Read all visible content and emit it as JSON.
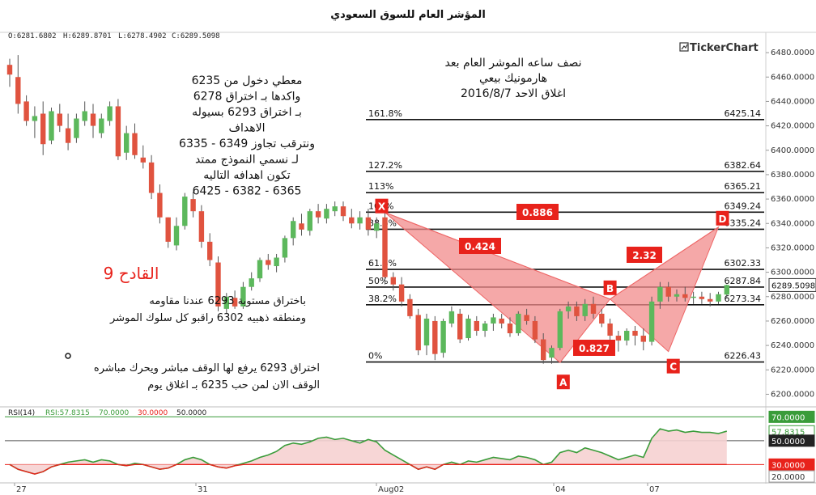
{
  "chart_data": {
    "type": "candlestick",
    "title": "المؤشر العام للسوق السعودي",
    "brand": "TickerChart",
    "ohlc_label": {
      "open": "O:6281.6802",
      "high": "H:6289.8701",
      "low": "L:6278.4902",
      "close": "C:6289.5098"
    },
    "last_price": "6289.5098",
    "x_labels": [
      "27",
      "31",
      "Aug02",
      "04",
      "07"
    ],
    "y_ticks": [
      "6200.0000",
      "6220.0000",
      "6240.0000",
      "6260.0000",
      "6280.0000",
      "6300.0000",
      "6320.0000",
      "6340.0000",
      "6360.0000",
      "6380.0000",
      "6400.0000",
      "6420.0000",
      "6440.0000",
      "6460.0000",
      "6480.0000"
    ],
    "y_range": [
      6193,
      6490
    ],
    "fib_levels": [
      {
        "pct": "161.8%",
        "price": 6425.14,
        "label": "6425.14"
      },
      {
        "pct": "127.2%",
        "price": 6382.64,
        "label": "6382.64"
      },
      {
        "pct": "113%",
        "price": 6365.21,
        "label": "6365.21"
      },
      {
        "pct": "100%",
        "price": 6349.24,
        "label": "6349.24"
      },
      {
        "pct": "88.6%",
        "price": 6335.24,
        "label": "6335.24"
      },
      {
        "pct": "61.8%",
        "price": 6302.33,
        "label": "6302.33"
      },
      {
        "pct": "50%",
        "price": 6287.84,
        "label": "6287.84"
      },
      {
        "pct": "38.2%",
        "price": 6273.34,
        "label": "6273.34"
      },
      {
        "pct": "0%",
        "price": 6226.43,
        "label": "6226.43"
      }
    ],
    "pattern_points": [
      {
        "name": "X",
        "idx": 45,
        "price": 6349
      },
      {
        "name": "A",
        "idx": 66,
        "price": 6226
      },
      {
        "name": "B",
        "idx": 72,
        "price": 6278
      },
      {
        "name": "C",
        "idx": 79,
        "price": 6235
      },
      {
        "name": "D",
        "idx": 85,
        "price": 6337
      }
    ],
    "ratios": [
      {
        "label": "0.424"
      },
      {
        "label": "0.886"
      },
      {
        "label": "0.827"
      },
      {
        "label": "2.32"
      }
    ],
    "candles": [
      [
        6470,
        6475,
        6452,
        6462
      ],
      [
        6460,
        6478,
        6430,
        6438
      ],
      [
        6440,
        6445,
        6420,
        6424
      ],
      [
        6424,
        6436,
        6410,
        6428
      ],
      [
        6430,
        6440,
        6396,
        6405
      ],
      [
        6408,
        6435,
        6405,
        6432
      ],
      [
        6430,
        6438,
        6415,
        6420
      ],
      [
        6418,
        6430,
        6400,
        6406
      ],
      [
        6410,
        6430,
        6406,
        6426
      ],
      [
        6424,
        6440,
        6420,
        6432
      ],
      [
        6430,
        6438,
        6410,
        6420
      ],
      [
        6414,
        6430,
        6410,
        6426
      ],
      [
        6424,
        6440,
        6420,
        6436
      ],
      [
        6436,
        6442,
        6392,
        6395
      ],
      [
        6398,
        6420,
        6392,
        6414
      ],
      [
        6414,
        6422,
        6393,
        6396
      ],
      [
        6394,
        6404,
        6385,
        6390
      ],
      [
        6390,
        6396,
        6360,
        6365
      ],
      [
        6365,
        6372,
        6340,
        6345
      ],
      [
        6345,
        6345,
        6320,
        6325
      ],
      [
        6322,
        6345,
        6318,
        6338
      ],
      [
        6338,
        6365,
        6335,
        6362
      ],
      [
        6360,
        6366,
        6345,
        6350
      ],
      [
        6350,
        6355,
        6320,
        6325
      ],
      [
        6325,
        6332,
        6305,
        6310
      ],
      [
        6308,
        6313,
        6268,
        6272
      ],
      [
        6270,
        6283,
        6266,
        6280
      ],
      [
        6279,
        6285,
        6270,
        6272
      ],
      [
        6272,
        6292,
        6270,
        6288
      ],
      [
        6288,
        6300,
        6285,
        6295
      ],
      [
        6295,
        6312,
        6292,
        6310
      ],
      [
        6310,
        6315,
        6302,
        6306
      ],
      [
        6305,
        6315,
        6300,
        6312
      ],
      [
        6312,
        6330,
        6308,
        6328
      ],
      [
        6328,
        6345,
        6322,
        6342
      ],
      [
        6340,
        6348,
        6330,
        6335
      ],
      [
        6334,
        6352,
        6330,
        6350
      ],
      [
        6350,
        6356,
        6340,
        6345
      ],
      [
        6344,
        6356,
        6340,
        6352
      ],
      [
        6350,
        6358,
        6346,
        6354
      ],
      [
        6354,
        6358,
        6342,
        6346
      ],
      [
        6345,
        6352,
        6336,
        6340
      ],
      [
        6340,
        6350,
        6335,
        6345
      ],
      [
        6345,
        6352,
        6330,
        6335
      ],
      [
        6334,
        6345,
        6328,
        6340
      ],
      [
        6345,
        6352,
        6290,
        6296
      ],
      [
        6296,
        6300,
        6285,
        6290
      ],
      [
        6290,
        6296,
        6272,
        6276
      ],
      [
        6278,
        6282,
        6262,
        6264
      ],
      [
        6265,
        6270,
        6232,
        6236
      ],
      [
        6240,
        6266,
        6232,
        6262
      ],
      [
        6260,
        6264,
        6228,
        6233
      ],
      [
        6234,
        6262,
        6230,
        6260
      ],
      [
        6258,
        6272,
        6255,
        6268
      ],
      [
        6266,
        6270,
        6242,
        6245
      ],
      [
        6246,
        6265,
        6244,
        6262
      ],
      [
        6260,
        6264,
        6248,
        6252
      ],
      [
        6252,
        6260,
        6247,
        6258
      ],
      [
        6258,
        6266,
        6252,
        6263
      ],
      [
        6262,
        6266,
        6254,
        6258
      ],
      [
        6258,
        6263,
        6247,
        6250
      ],
      [
        6250,
        6268,
        6248,
        6266
      ],
      [
        6265,
        6270,
        6257,
        6260
      ],
      [
        6260,
        6264,
        6242,
        6245
      ],
      [
        6245,
        6250,
        6225,
        6228
      ],
      [
        6230,
        6240,
        6225,
        6238
      ],
      [
        6238,
        6270,
        6236,
        6268
      ],
      [
        6268,
        6276,
        6262,
        6272
      ],
      [
        6272,
        6276,
        6260,
        6264
      ],
      [
        6264,
        6278,
        6260,
        6274
      ],
      [
        6274,
        6280,
        6262,
        6266
      ],
      [
        6266,
        6270,
        6255,
        6258
      ],
      [
        6258,
        6262,
        6244,
        6248
      ],
      [
        6248,
        6252,
        6235,
        6244
      ],
      [
        6244,
        6254,
        6240,
        6252
      ],
      [
        6252,
        6256,
        6240,
        6248
      ],
      [
        6248,
        6254,
        6236,
        6243
      ],
      [
        6243,
        6280,
        6240,
        6276
      ],
      [
        6276,
        6292,
        6270,
        6288
      ],
      [
        6288,
        6292,
        6276,
        6280
      ],
      [
        6280,
        6286,
        6276,
        6282
      ],
      [
        6282,
        6288,
        6276,
        6279
      ],
      [
        6279,
        6284,
        6274,
        6280
      ],
      [
        6280,
        6284,
        6274,
        6278
      ],
      [
        6278,
        6283,
        6272,
        6276
      ],
      [
        6276,
        6284,
        6274,
        6282
      ],
      [
        6281.68,
        6289.87,
        6278.49,
        6289.51
      ]
    ]
  },
  "rsi": {
    "label": "RSI(14)",
    "value_label": "RSI:57.8315",
    "levels": [
      "70.0000",
      "30.0000",
      "50.0000"
    ],
    "right_labels": [
      "70.0000",
      "57.8315",
      "50.0000",
      "30.0000",
      "20.0000"
    ],
    "values": [
      30,
      26,
      24,
      22,
      24,
      28,
      30,
      32,
      33,
      34,
      32,
      34,
      33,
      30,
      29,
      31,
      30,
      28,
      26,
      27,
      30,
      34,
      36,
      34,
      30,
      28,
      27,
      29,
      31,
      33,
      36,
      38,
      41,
      46,
      48,
      47,
      49,
      52,
      53,
      51,
      52,
      50,
      48,
      51,
      49,
      42,
      38,
      34,
      30,
      26,
      28,
      26,
      30,
      32,
      30,
      33,
      32,
      34,
      36,
      35,
      34,
      37,
      36,
      34,
      30,
      32,
      40,
      42,
      40,
      44,
      42,
      40,
      37,
      34,
      36,
      38,
      36,
      52,
      60,
      58,
      59,
      57,
      58,
      57,
      57,
      56,
      58
    ]
  },
  "annotations": {
    "left_block": [
      "معطي دخول من 6235",
      "واكدها بـ اختراق 6278",
      "بـ اختراق 6293 بسيوله",
      "الاهداف",
      "6335 - ونترقب تجاوز 6349",
      "لـ نسمي النموذج ممتد",
      "تكون اهدافه التاليه",
      "6425 - 6382 - 6365"
    ],
    "qadeh": "القادح 9",
    "mid_block": [
      "باختراق مستوبة 6293 عندنا مقاومه",
      "ومنطقه ذهبيه 6302 راقبو كل سلوك الموشر"
    ],
    "bottom_block": [
      "اختراق 6293 يرفع لها الوقف مباشر ويحرك مباشره",
      "الوقف الان لمن حب 6235 بـ اغلاق يوم"
    ],
    "top_right_block": [
      "نصف ساعه الموشر العام بعد",
      "هارمونيك بيعي",
      "اغلاق الاحد 2016/8/7"
    ]
  },
  "colors": {
    "up": "#5cb85c",
    "down": "#e0533f",
    "pattern_fill": "#f28b8b",
    "label_red": "#e8221b",
    "rsi_fill": "#f6d2d2",
    "rsi_line": "#3a9c3a"
  }
}
